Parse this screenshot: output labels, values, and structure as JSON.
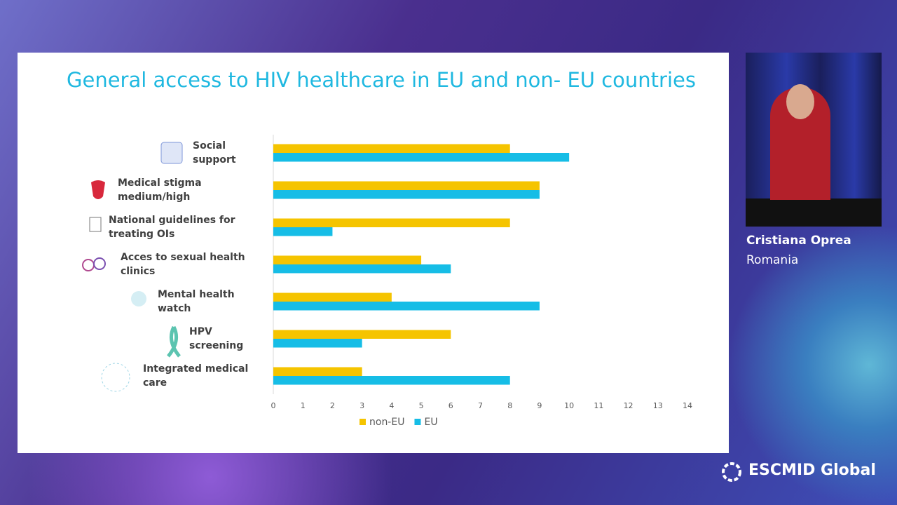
{
  "chart_data": {
    "type": "bar",
    "orientation": "horizontal",
    "title": "General access to HIV healthcare in EU and non- EU countries",
    "categories": [
      "Social support",
      "Medical stigma medium/high",
      "National guidelines for treating OIs",
      "Acces to sexual health clinics",
      "Mental health watch",
      "HPV screening",
      "Integrated medical care"
    ],
    "series": [
      {
        "name": "non-EU",
        "color": "#f5c400",
        "values": [
          8,
          9,
          8,
          5,
          4,
          6,
          3
        ]
      },
      {
        "name": "EU",
        "color": "#16bde6",
        "values": [
          10,
          9,
          2,
          6,
          9,
          3,
          8
        ]
      }
    ],
    "xlim": [
      0,
      14
    ],
    "xticks": [
      0,
      1,
      2,
      3,
      4,
      5,
      6,
      7,
      8,
      9,
      10,
      11,
      12,
      13,
      14
    ],
    "grid": false,
    "legend": "bottom"
  },
  "speaker": {
    "name": "Cristiana Oprea",
    "country": "Romania"
  },
  "brand": "ESCMID Global"
}
